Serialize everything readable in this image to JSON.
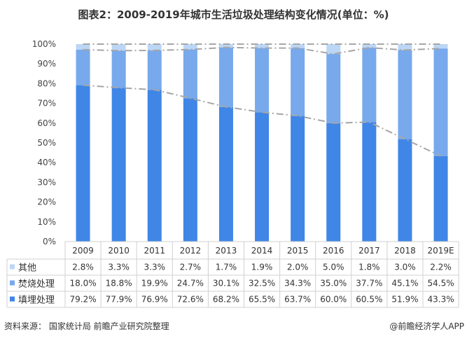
{
  "title": "图表2：2009-2019年城市生活垃圾处理结构变化情况(单位：%)",
  "source": "资料来源： 国家统计局 前瞻产业研究院整理",
  "brand": "@前瞻经济学人APP",
  "chart_data": {
    "type": "bar",
    "stacked": true,
    "title": "图表2：2009-2019年城市生活垃圾处理结构变化情况(单位：%)",
    "categories": [
      "2009",
      "2010",
      "2011",
      "2012",
      "2013",
      "2014",
      "2015",
      "2016",
      "2017",
      "2018",
      "2019E"
    ],
    "ylim": [
      0,
      100
    ],
    "yticks": [
      "0%",
      "10%",
      "20%",
      "30%",
      "40%",
      "50%",
      "60%",
      "70%",
      "80%",
      "90%",
      "100%"
    ],
    "legend_placement": "data-table",
    "series": [
      {
        "name": "填埋处理",
        "color": "#3f86e6",
        "values": [
          79.2,
          77.9,
          76.9,
          72.6,
          68.2,
          65.5,
          63.7,
          60.0,
          60.5,
          51.9,
          43.3
        ],
        "labels": [
          "79.2%",
          "77.9%",
          "76.9%",
          "72.6%",
          "68.2%",
          "65.5%",
          "63.7%",
          "60.0%",
          "60.5%",
          "51.9%",
          "43.3%"
        ]
      },
      {
        "name": "焚烧处理",
        "color": "#77a9ec",
        "values": [
          18.0,
          18.8,
          19.9,
          24.7,
          30.1,
          32.5,
          34.3,
          35.0,
          37.7,
          45.1,
          54.5
        ],
        "labels": [
          "18.0%",
          "18.8%",
          "19.9%",
          "24.7%",
          "30.1%",
          "32.5%",
          "34.3%",
          "35.0%",
          "37.7%",
          "45.1%",
          "54.5%"
        ]
      },
      {
        "name": "其他",
        "color": "#bcd6f6",
        "values": [
          2.8,
          3.3,
          3.3,
          2.7,
          1.7,
          1.9,
          2.0,
          5.0,
          1.8,
          3.0,
          2.2
        ],
        "labels": [
          "2.8%",
          "3.3%",
          "3.3%",
          "2.7%",
          "1.7%",
          "1.9%",
          "2.0%",
          "5.0%",
          "1.8%",
          "3.0%",
          "2.2%"
        ]
      }
    ]
  }
}
